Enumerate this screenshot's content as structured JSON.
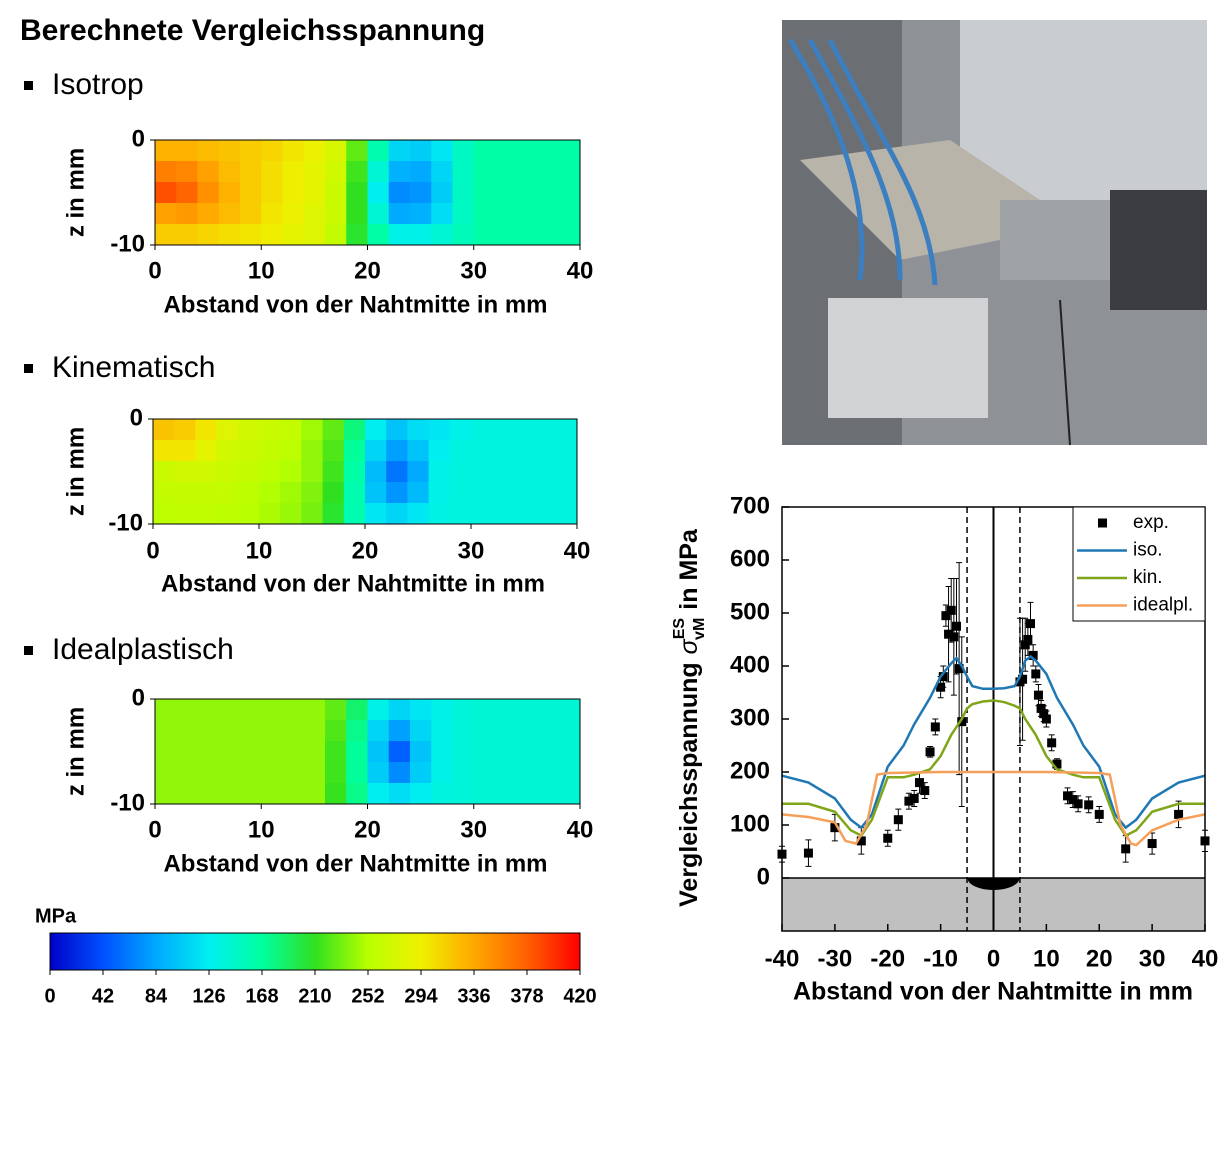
{
  "title": "Berechnete Vergleichsspannung",
  "chart_data": [
    {
      "type": "contour",
      "title": "Isotrop",
      "xlabel": "Abstand von der Nahtmitte in mm",
      "ylabel": "z in mm",
      "xlim": [
        0,
        40
      ],
      "ylim": [
        -10,
        0
      ],
      "xticks": [
        0,
        10,
        20,
        30,
        40
      ],
      "yticks": [
        0,
        -10
      ],
      "x": [
        1,
        3,
        5,
        7,
        9,
        11,
        13,
        15,
        17,
        19,
        21,
        23,
        25,
        27,
        29,
        31,
        33,
        35,
        37,
        39
      ],
      "z": [
        -1,
        -3,
        -5,
        -7,
        -9
      ],
      "values": [
        [
          330,
          330,
          325,
          320,
          315,
          310,
          300,
          290,
          275,
          225,
          160,
          110,
          105,
          120,
          150,
          165,
          165,
          165,
          165,
          165
        ],
        [
          360,
          355,
          340,
          325,
          315,
          305,
          295,
          285,
          270,
          215,
          140,
          90,
          85,
          110,
          150,
          165,
          165,
          165,
          165,
          165
        ],
        [
          385,
          375,
          350,
          330,
          315,
          305,
          295,
          285,
          265,
          210,
          125,
          70,
          75,
          105,
          150,
          165,
          165,
          165,
          165,
          165
        ],
        [
          340,
          345,
          335,
          325,
          315,
          300,
          290,
          280,
          265,
          210,
          140,
          85,
          90,
          115,
          150,
          165,
          165,
          165,
          165,
          165
        ],
        [
          315,
          315,
          310,
          305,
          300,
          295,
          285,
          280,
          260,
          205,
          165,
          130,
          130,
          140,
          155,
          165,
          165,
          165,
          165,
          165
        ]
      ]
    },
    {
      "type": "contour",
      "title": "Kinematisch",
      "xlabel": "Abstand von der Nahtmitte in mm",
      "ylabel": "z in mm",
      "xlim": [
        0,
        40
      ],
      "ylim": [
        -10,
        0
      ],
      "xticks": [
        0,
        10,
        20,
        30,
        40
      ],
      "yticks": [
        0,
        -10
      ],
      "x": [
        1,
        3,
        5,
        7,
        9,
        11,
        13,
        15,
        17,
        19,
        21,
        23,
        25,
        27,
        29,
        31,
        33,
        35,
        37,
        39
      ],
      "z": [
        -1,
        -3,
        -5,
        -7,
        -9
      ],
      "values": [
        [
          320,
          315,
          300,
          280,
          270,
          265,
          260,
          245,
          225,
          180,
          125,
          100,
          115,
          120,
          130,
          135,
          135,
          135,
          135,
          135
        ],
        [
          300,
          300,
          285,
          270,
          265,
          260,
          255,
          240,
          220,
          170,
          110,
          80,
          100,
          125,
          135,
          135,
          135,
          135,
          135,
          135
        ],
        [
          265,
          270,
          270,
          265,
          260,
          255,
          250,
          240,
          215,
          165,
          95,
          60,
          85,
          130,
          135,
          135,
          135,
          135,
          135,
          135
        ],
        [
          260,
          262,
          262,
          260,
          255,
          250,
          245,
          235,
          210,
          160,
          100,
          75,
          95,
          130,
          135,
          135,
          135,
          135,
          135,
          135
        ],
        [
          255,
          258,
          258,
          255,
          252,
          248,
          242,
          232,
          205,
          160,
          120,
          110,
          120,
          132,
          135,
          135,
          135,
          135,
          135,
          135
        ]
      ]
    },
    {
      "type": "contour",
      "title": "Idealplastisch",
      "xlabel": "Abstand von der Nahtmitte in mm",
      "ylabel": "z in mm",
      "xlim": [
        0,
        40
      ],
      "ylim": [
        -10,
        0
      ],
      "xticks": [
        0,
        10,
        20,
        30,
        40
      ],
      "yticks": [
        0,
        -10
      ],
      "x": [
        1,
        3,
        5,
        7,
        9,
        11,
        13,
        15,
        17,
        19,
        21,
        23,
        25,
        27,
        29,
        31,
        33,
        35,
        37,
        39
      ],
      "z": [
        -1,
        -3,
        -5,
        -7,
        -9
      ],
      "values": [
        [
          240,
          240,
          240,
          240,
          240,
          240,
          240,
          240,
          225,
          185,
          130,
          110,
          120,
          130,
          138,
          140,
          140,
          140,
          140,
          140
        ],
        [
          240,
          240,
          240,
          240,
          240,
          240,
          240,
          240,
          220,
          175,
          110,
          80,
          110,
          130,
          138,
          140,
          140,
          140,
          140,
          140
        ],
        [
          240,
          240,
          240,
          240,
          240,
          240,
          240,
          240,
          215,
          170,
          100,
          50,
          100,
          130,
          138,
          140,
          140,
          140,
          140,
          140
        ],
        [
          240,
          240,
          240,
          240,
          240,
          240,
          240,
          240,
          215,
          170,
          105,
          70,
          105,
          130,
          138,
          140,
          140,
          140,
          140,
          140
        ],
        [
          240,
          240,
          240,
          240,
          240,
          240,
          240,
          240,
          212,
          175,
          125,
          115,
          125,
          135,
          138,
          140,
          140,
          140,
          140,
          140
        ]
      ]
    },
    {
      "type": "colorbar",
      "label": "MPa",
      "lim": [
        0,
        420
      ],
      "ticks": [
        0,
        42,
        84,
        126,
        168,
        210,
        252,
        294,
        336,
        378,
        420
      ],
      "colors": [
        "#0000c8",
        "#0050ff",
        "#00a8ff",
        "#00f0f0",
        "#00ffa0",
        "#30e020",
        "#b8ff00",
        "#f0f000",
        "#ffa800",
        "#ff6000",
        "#ff0000"
      ]
    },
    {
      "type": "line",
      "xlabel": "Abstand von der Nahtmitte in mm",
      "ylabel": "Vergleichsspannung",
      "ylabel_symbol": "σ",
      "ylabel_sup": "ES",
      "ylabel_sub": "vM",
      "ylabel_unit": "in MPa",
      "xlim": [
        -40,
        40
      ],
      "ylim": [
        -100,
        700
      ],
      "xticks": [
        -40,
        -30,
        -20,
        -10,
        0,
        10,
        20,
        30,
        40
      ],
      "yticks": [
        0,
        100,
        200,
        300,
        400,
        500,
        600,
        700
      ],
      "vlines": [
        -5,
        5
      ],
      "legend": "upper right",
      "series": [
        {
          "name": "exp.",
          "color": "#000000",
          "marker": "square",
          "x": [
            -40,
            -35,
            -30,
            -25,
            -20,
            -18,
            -16,
            -15,
            -14,
            -13,
            -12,
            -11,
            -10,
            -9.5,
            -9,
            -8.5,
            -8,
            -7.5,
            -7,
            -6.5,
            -6,
            5,
            5.5,
            6,
            6.5,
            7,
            7.5,
            8,
            8.5,
            9,
            9.5,
            10,
            11,
            12,
            14,
            15,
            16,
            18,
            20,
            25,
            30,
            35,
            40
          ],
          "values": [
            45,
            47,
            95,
            70,
            75,
            110,
            145,
            150,
            180,
            165,
            238,
            285,
            360,
            380,
            495,
            460,
            505,
            455,
            475,
            395,
            295,
            370,
            375,
            440,
            450,
            480,
            420,
            385,
            345,
            320,
            310,
            300,
            255,
            215,
            155,
            148,
            140,
            138,
            120,
            55,
            65,
            120,
            70
          ],
          "errors": [
            15,
            25,
            25,
            25,
            15,
            20,
            15,
            15,
            20,
            15,
            10,
            15,
            20,
            20,
            20,
            90,
            60,
            110,
            90,
            200,
            160,
            120,
            115,
            50,
            30,
            40,
            20,
            15,
            20,
            15,
            15,
            15,
            15,
            10,
            15,
            15,
            15,
            15,
            15,
            25,
            20,
            25,
            20
          ]
        },
        {
          "name": "iso.",
          "color": "#1f77b4",
          "x": [
            -40,
            -35,
            -30,
            -27,
            -25,
            -23,
            -20,
            -17,
            -15,
            -12,
            -10,
            -8,
            -7,
            -6,
            -5,
            -4,
            -2,
            0,
            2,
            4,
            5,
            6,
            7,
            8,
            10,
            12,
            15,
            17,
            20,
            23,
            25,
            27,
            30,
            35,
            40
          ],
          "values": [
            193,
            180,
            150,
            110,
            95,
            120,
            210,
            250,
            290,
            340,
            380,
            405,
            415,
            400,
            380,
            362,
            357,
            357,
            358,
            362,
            380,
            410,
            418,
            410,
            385,
            340,
            290,
            250,
            210,
            120,
            95,
            110,
            150,
            180,
            193
          ]
        },
        {
          "name": "kin.",
          "color": "#7fa61a",
          "x": [
            -40,
            -35,
            -30,
            -27,
            -25,
            -23,
            -20,
            -17,
            -15,
            -12,
            -10,
            -8,
            -6,
            -5,
            -4,
            -2,
            0,
            2,
            4,
            5,
            6,
            8,
            10,
            12,
            15,
            17,
            20,
            23,
            25,
            27,
            30,
            35,
            40
          ],
          "values": [
            140,
            140,
            125,
            90,
            80,
            110,
            190,
            190,
            195,
            205,
            230,
            270,
            300,
            320,
            328,
            333,
            335,
            332,
            325,
            320,
            300,
            270,
            230,
            205,
            195,
            190,
            190,
            110,
            80,
            90,
            125,
            140,
            140
          ]
        },
        {
          "name": "idealpl.",
          "color": "#f5a05a",
          "x": [
            -40,
            -35,
            -30,
            -28,
            -26,
            -24,
            -22,
            -20,
            -10,
            0,
            10,
            20,
            22,
            24,
            26,
            27,
            30,
            35,
            40
          ],
          "values": [
            120,
            115,
            105,
            70,
            65,
            100,
            195,
            198,
            200,
            200,
            200,
            198,
            195,
            100,
            65,
            62,
            90,
            110,
            120
          ]
        }
      ]
    }
  ]
}
